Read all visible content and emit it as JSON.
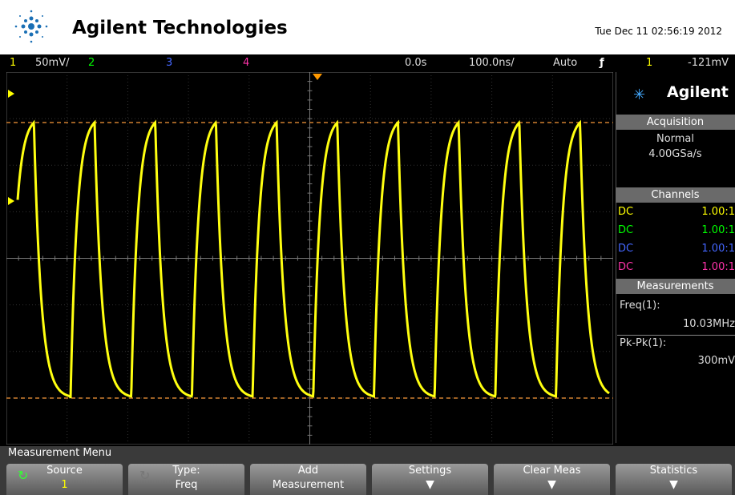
{
  "header": {
    "brand": "Agilent Technologies",
    "datetime": "Tue Dec 11 02:56:19 2012"
  },
  "status": {
    "ch1": "1",
    "ch1_scale": "50mV/",
    "ch2": "2",
    "ch3": "3",
    "ch4": "4",
    "time_delay": "0.0s",
    "time_scale": "100.0ns/",
    "trigger_mode": "Auto",
    "trigger_source": "1",
    "trigger_level": "-121mV"
  },
  "side_panel": {
    "brand": "Agilent",
    "acquisition": {
      "title": "Acquisition",
      "mode": "Normal",
      "rate": "4.00GSa/s"
    },
    "channels": {
      "title": "Channels",
      "rows": [
        {
          "coupling": "DC",
          "ratio": "1.00:1"
        },
        {
          "coupling": "DC",
          "ratio": "1.00:1"
        },
        {
          "coupling": "DC",
          "ratio": "1.00:1"
        },
        {
          "coupling": "DC",
          "ratio": "1.00:1"
        }
      ]
    },
    "measurements": {
      "title": "Measurements",
      "items": [
        {
          "label": "Freq(1):",
          "value": "10.03MHz"
        },
        {
          "label": "Pk-Pk(1):",
          "value": "300mV"
        }
      ]
    }
  },
  "menu": {
    "title": "Measurement Menu",
    "softkeys": [
      {
        "label": "Source",
        "value": "1"
      },
      {
        "label": "Type:",
        "value": "Freq"
      },
      {
        "label": "Add",
        "value": "Measurement"
      },
      {
        "label": "Settings"
      },
      {
        "label": "Clear Meas"
      },
      {
        "label": "Statistics"
      }
    ]
  }
}
